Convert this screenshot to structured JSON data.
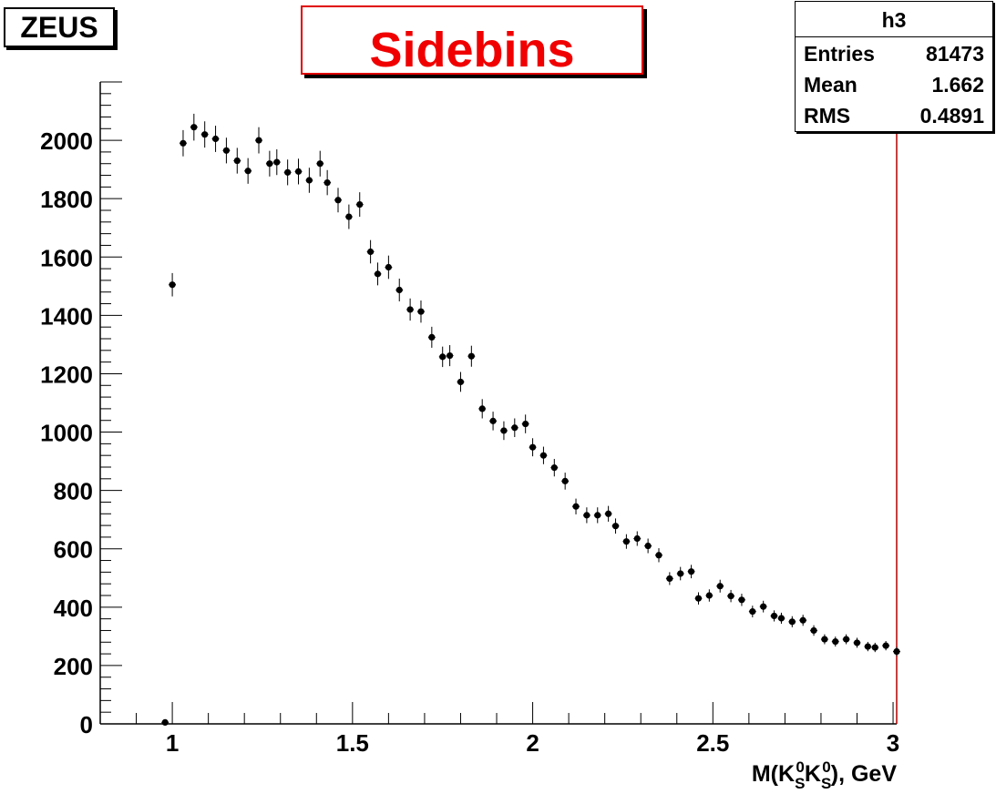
{
  "experiment_label": "ZEUS",
  "title": "Sidebins",
  "stats_box": {
    "name": "h3",
    "rows": [
      {
        "label": "Entries",
        "value": "81473"
      },
      {
        "label": "Mean",
        "value": "1.662"
      },
      {
        "label": "RMS",
        "value": "0.4891"
      }
    ]
  },
  "colors": {
    "title": "#f00000",
    "frame_right": "#b00000",
    "markers": "#000000"
  },
  "chart_data": {
    "type": "scatter",
    "title": "Sidebins",
    "xlabel": {
      "prefix": "M(K",
      "sub1": "S",
      "sup1": "0",
      "mid": "K",
      "sub2": "S",
      "sup2": "0",
      "suffix": "), GeV"
    },
    "ylabel": "",
    "xlim": [
      0.8,
      3.01
    ],
    "ylim": [
      0,
      2200
    ],
    "xticks": [
      1,
      1.5,
      2,
      2.5,
      3
    ],
    "xtick_labels": [
      "1",
      "1.5",
      "2",
      "2.5",
      "3"
    ],
    "yticks": [
      0,
      200,
      400,
      600,
      800,
      1000,
      1200,
      1400,
      1600,
      1800,
      2000
    ],
    "ytick_labels": [
      "0",
      "200",
      "400",
      "600",
      "800",
      "1000",
      "1200",
      "1400",
      "1600",
      "1800",
      "2000"
    ],
    "x_halfwidth": 0.01,
    "grid": false,
    "legend": "none",
    "series": [
      {
        "x": [
          0.98,
          1.0,
          1.03,
          1.06,
          1.09,
          1.12,
          1.15,
          1.18,
          1.21,
          1.24,
          1.27,
          1.29,
          1.32,
          1.35,
          1.38,
          1.41,
          1.43,
          1.46,
          1.49,
          1.52,
          1.55,
          1.57,
          1.6,
          1.63,
          1.66,
          1.69,
          1.72,
          1.75,
          1.77,
          1.8,
          1.83,
          1.86,
          1.89,
          1.92,
          1.95,
          1.98,
          2.0,
          2.03,
          2.06,
          2.09,
          2.12,
          2.15,
          2.18,
          2.21,
          2.23,
          2.26,
          2.29,
          2.32,
          2.35,
          2.38,
          2.41,
          2.44,
          2.46,
          2.49,
          2.52,
          2.55,
          2.58,
          2.61,
          2.64,
          2.67,
          2.69,
          2.72,
          2.75,
          2.78,
          2.81,
          2.84,
          2.87,
          2.9,
          2.93,
          2.95,
          2.98,
          3.01
        ],
        "y": [
          5,
          1505,
          1990,
          2045,
          2020,
          2005,
          1965,
          1930,
          1895,
          2000,
          1920,
          1925,
          1890,
          1893,
          1863,
          1920,
          1855,
          1795,
          1738,
          1780,
          1618,
          1542,
          1565,
          1487,
          1420,
          1413,
          1325,
          1258,
          1262,
          1172,
          1260,
          1080,
          1038,
          1005,
          1015,
          1028,
          948,
          920,
          878,
          832,
          745,
          715,
          715,
          720,
          678,
          625,
          635,
          610,
          578,
          498,
          515,
          522,
          430,
          440,
          472,
          438,
          425,
          385,
          402,
          370,
          362,
          350,
          355,
          320,
          290,
          282,
          290,
          278,
          265,
          262,
          268,
          248
        ],
        "yerr": [
          4,
          40,
          45,
          46,
          45,
          45,
          44,
          44,
          44,
          45,
          44,
          44,
          44,
          44,
          43,
          44,
          43,
          42,
          42,
          42,
          40,
          39,
          40,
          39,
          38,
          38,
          36,
          35,
          36,
          34,
          36,
          33,
          32,
          32,
          32,
          32,
          31,
          30,
          30,
          29,
          27,
          27,
          27,
          27,
          26,
          25,
          25,
          25,
          24,
          22,
          23,
          23,
          21,
          21,
          22,
          21,
          21,
          20,
          20,
          19,
          19,
          19,
          19,
          18,
          17,
          17,
          17,
          17,
          16,
          16,
          16,
          16
        ]
      }
    ]
  }
}
